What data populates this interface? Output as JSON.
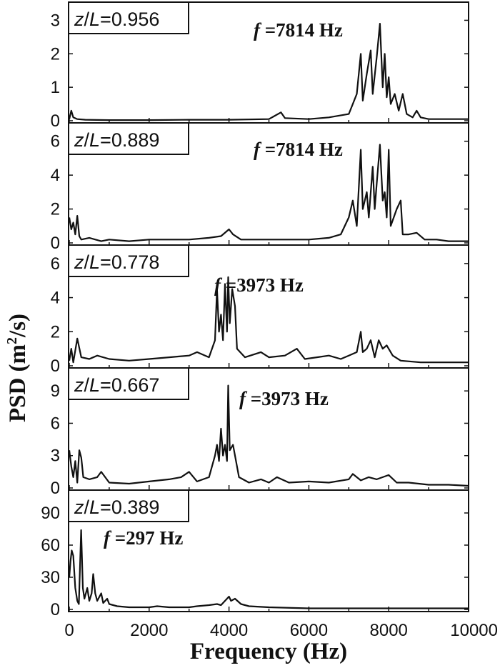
{
  "chart_data": {
    "type": "line",
    "xlabel": "Frequency (Hz)",
    "ylabel": {
      "main": "PSD (m",
      "sup": "2",
      "tail": "/s)"
    },
    "xlim": [
      0,
      10000
    ],
    "xticks": [
      "0",
      "2000",
      "4000",
      "6000",
      "8000",
      "10000"
    ],
    "panels": [
      {
        "label_prefix": "z/",
        "label_var": "L",
        "label_value": "=0.956",
        "freq_var": "f",
        "freq_text": "=7814 Hz",
        "ylim": [
          0,
          3.5
        ],
        "yticks": [
          0,
          1,
          2,
          3
        ],
        "series": [
          [
            0,
            0.05
          ],
          [
            50,
            0.3
          ],
          [
            100,
            0.1
          ],
          [
            200,
            0.05
          ],
          [
            400,
            0.03
          ],
          [
            1000,
            0.02
          ],
          [
            2000,
            0.02
          ],
          [
            3000,
            0.03
          ],
          [
            4000,
            0.03
          ],
          [
            5000,
            0.05
          ],
          [
            5300,
            0.25
          ],
          [
            5400,
            0.08
          ],
          [
            6000,
            0.05
          ],
          [
            6500,
            0.1
          ],
          [
            7000,
            0.2
          ],
          [
            7100,
            0.5
          ],
          [
            7200,
            0.8
          ],
          [
            7300,
            2.0
          ],
          [
            7350,
            0.6
          ],
          [
            7450,
            1.4
          ],
          [
            7550,
            2.1
          ],
          [
            7600,
            0.8
          ],
          [
            7700,
            1.9
          ],
          [
            7780,
            2.9
          ],
          [
            7850,
            1.0
          ],
          [
            7900,
            2.0
          ],
          [
            7950,
            0.7
          ],
          [
            8000,
            1.3
          ],
          [
            8050,
            0.5
          ],
          [
            8150,
            0.8
          ],
          [
            8250,
            0.3
          ],
          [
            8350,
            0.8
          ],
          [
            8450,
            0.2
          ],
          [
            8600,
            0.1
          ],
          [
            8700,
            0.3
          ],
          [
            8800,
            0.1
          ],
          [
            9000,
            0.05
          ],
          [
            9500,
            0.05
          ],
          [
            10000,
            0.05
          ]
        ]
      },
      {
        "label_prefix": "z/",
        "label_var": "L",
        "label_value": "=0.889",
        "freq_var": "f",
        "freq_text": "=7814 Hz",
        "ylim": [
          0,
          7
        ],
        "yticks": [
          0,
          2,
          4,
          6
        ],
        "series": [
          [
            0,
            1.5
          ],
          [
            50,
            0.8
          ],
          [
            100,
            1.2
          ],
          [
            150,
            0.5
          ],
          [
            200,
            1.6
          ],
          [
            250,
            0.4
          ],
          [
            300,
            0.2
          ],
          [
            500,
            0.3
          ],
          [
            800,
            0.1
          ],
          [
            1000,
            0.2
          ],
          [
            1500,
            0.1
          ],
          [
            2000,
            0.2
          ],
          [
            2500,
            0.2
          ],
          [
            3000,
            0.2
          ],
          [
            3500,
            0.3
          ],
          [
            3800,
            0.4
          ],
          [
            4000,
            0.8
          ],
          [
            4100,
            0.5
          ],
          [
            4300,
            0.2
          ],
          [
            5000,
            0.2
          ],
          [
            5500,
            0.2
          ],
          [
            6000,
            0.2
          ],
          [
            6500,
            0.3
          ],
          [
            6800,
            0.5
          ],
          [
            7000,
            1.5
          ],
          [
            7100,
            2.5
          ],
          [
            7200,
            1.0
          ],
          [
            7300,
            5.5
          ],
          [
            7350,
            2.0
          ],
          [
            7450,
            3.0
          ],
          [
            7500,
            1.5
          ],
          [
            7600,
            4.5
          ],
          [
            7650,
            2.0
          ],
          [
            7700,
            3.5
          ],
          [
            7780,
            5.8
          ],
          [
            7850,
            2.5
          ],
          [
            7900,
            3.0
          ],
          [
            7950,
            1.5
          ],
          [
            8000,
            5.5
          ],
          [
            8050,
            1.0
          ],
          [
            8200,
            2.0
          ],
          [
            8300,
            2.5
          ],
          [
            8350,
            0.5
          ],
          [
            8500,
            0.5
          ],
          [
            8700,
            0.6
          ],
          [
            8900,
            0.2
          ],
          [
            9200,
            0.2
          ],
          [
            9500,
            0.1
          ],
          [
            10000,
            0.1
          ]
        ]
      },
      {
        "label_prefix": "z/",
        "label_var": "L",
        "label_value": "=0.778",
        "freq_var": "f",
        "freq_text": "=3973 Hz",
        "ylim": [
          0,
          7
        ],
        "yticks": [
          0,
          2,
          4,
          6
        ],
        "series": [
          [
            0,
            0.3
          ],
          [
            50,
            1.0
          ],
          [
            100,
            0.2
          ],
          [
            200,
            1.6
          ],
          [
            300,
            0.5
          ],
          [
            500,
            0.4
          ],
          [
            700,
            0.6
          ],
          [
            1000,
            0.4
          ],
          [
            1500,
            0.3
          ],
          [
            2000,
            0.4
          ],
          [
            2500,
            0.5
          ],
          [
            3000,
            0.6
          ],
          [
            3200,
            0.8
          ],
          [
            3500,
            0.5
          ],
          [
            3650,
            1.5
          ],
          [
            3700,
            4.5
          ],
          [
            3750,
            2.0
          ],
          [
            3800,
            3.0
          ],
          [
            3850,
            1.5
          ],
          [
            3900,
            4.8
          ],
          [
            3950,
            2.0
          ],
          [
            3980,
            5.2
          ],
          [
            4020,
            2.5
          ],
          [
            4080,
            4.5
          ],
          [
            4150,
            3.5
          ],
          [
            4200,
            1.0
          ],
          [
            4400,
            0.5
          ],
          [
            4800,
            0.8
          ],
          [
            5000,
            0.5
          ],
          [
            5400,
            0.6
          ],
          [
            5700,
            1.0
          ],
          [
            5900,
            0.4
          ],
          [
            6200,
            0.5
          ],
          [
            6500,
            0.6
          ],
          [
            6800,
            0.4
          ],
          [
            7000,
            0.6
          ],
          [
            7200,
            0.8
          ],
          [
            7300,
            2.0
          ],
          [
            7350,
            0.8
          ],
          [
            7450,
            1.0
          ],
          [
            7550,
            1.5
          ],
          [
            7650,
            0.5
          ],
          [
            7750,
            1.5
          ],
          [
            7850,
            1.0
          ],
          [
            7950,
            1.2
          ],
          [
            8100,
            0.6
          ],
          [
            8300,
            0.3
          ],
          [
            8800,
            0.2
          ],
          [
            9500,
            0.2
          ],
          [
            10000,
            0.2
          ]
        ]
      },
      {
        "label_prefix": "z/",
        "label_var": "L",
        "label_value": "=0.667",
        "freq_var": "f",
        "freq_text": "=3973 Hz",
        "ylim": [
          0,
          11
        ],
        "yticks": [
          0,
          3,
          6,
          9
        ],
        "series": [
          [
            0,
            3.5
          ],
          [
            50,
            2.0
          ],
          [
            100,
            1.0
          ],
          [
            150,
            2.5
          ],
          [
            200,
            0.5
          ],
          [
            250,
            3.5
          ],
          [
            300,
            2.8
          ],
          [
            350,
            1.0
          ],
          [
            500,
            0.8
          ],
          [
            700,
            1.0
          ],
          [
            800,
            1.5
          ],
          [
            1000,
            0.5
          ],
          [
            1500,
            0.4
          ],
          [
            2000,
            0.6
          ],
          [
            2500,
            0.8
          ],
          [
            2800,
            1.0
          ],
          [
            3000,
            1.5
          ],
          [
            3200,
            0.6
          ],
          [
            3500,
            1.0
          ],
          [
            3650,
            3.0
          ],
          [
            3700,
            4.0
          ],
          [
            3750,
            2.5
          ],
          [
            3800,
            5.5
          ],
          [
            3850,
            3.0
          ],
          [
            3900,
            4.0
          ],
          [
            3950,
            2.5
          ],
          [
            3980,
            9.5
          ],
          [
            4020,
            3.5
          ],
          [
            4100,
            4.0
          ],
          [
            4150,
            3.0
          ],
          [
            4250,
            1.0
          ],
          [
            4500,
            0.5
          ],
          [
            4800,
            0.8
          ],
          [
            5000,
            0.5
          ],
          [
            5200,
            1.0
          ],
          [
            5500,
            0.5
          ],
          [
            6000,
            0.6
          ],
          [
            6500,
            0.5
          ],
          [
            7000,
            0.8
          ],
          [
            7100,
            1.3
          ],
          [
            7300,
            0.7
          ],
          [
            7500,
            1.0
          ],
          [
            7700,
            0.8
          ],
          [
            8000,
            1.2
          ],
          [
            8200,
            0.5
          ],
          [
            8500,
            0.5
          ],
          [
            9000,
            0.3
          ],
          [
            9500,
            0.3
          ],
          [
            10000,
            0.2
          ]
        ]
      },
      {
        "label_prefix": "z/",
        "label_var": "L",
        "label_value": "=0.389",
        "freq_var": "f",
        "freq_text": "=297 Hz",
        "ylim": [
          0,
          110
        ],
        "yticks": [
          0,
          30,
          60,
          90
        ],
        "series": [
          [
            0,
            30
          ],
          [
            30,
            45
          ],
          [
            60,
            55
          ],
          [
            100,
            50
          ],
          [
            150,
            20
          ],
          [
            200,
            8
          ],
          [
            240,
            5
          ],
          [
            297,
            74
          ],
          [
            340,
            20
          ],
          [
            380,
            10
          ],
          [
            450,
            20
          ],
          [
            500,
            8
          ],
          [
            560,
            15
          ],
          [
            600,
            33
          ],
          [
            650,
            15
          ],
          [
            700,
            8
          ],
          [
            800,
            15
          ],
          [
            850,
            6
          ],
          [
            950,
            10
          ],
          [
            1000,
            5
          ],
          [
            1200,
            3
          ],
          [
            1500,
            2
          ],
          [
            2000,
            2
          ],
          [
            2200,
            3
          ],
          [
            2500,
            2
          ],
          [
            3000,
            2
          ],
          [
            3200,
            3
          ],
          [
            3500,
            4
          ],
          [
            3700,
            5
          ],
          [
            3800,
            4
          ],
          [
            3950,
            10
          ],
          [
            4000,
            12
          ],
          [
            4050,
            8
          ],
          [
            4150,
            10
          ],
          [
            4300,
            5
          ],
          [
            4500,
            3
          ],
          [
            5000,
            2
          ],
          [
            6000,
            1
          ],
          [
            7000,
            1
          ],
          [
            8000,
            1
          ],
          [
            9000,
            1
          ],
          [
            10000,
            1
          ]
        ]
      }
    ]
  }
}
